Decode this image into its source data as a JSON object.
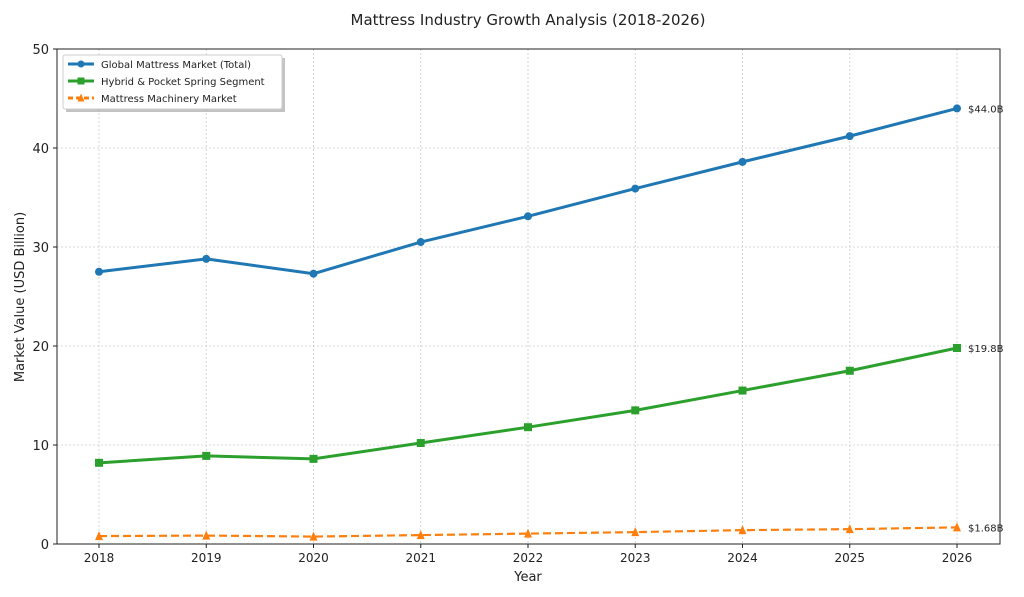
{
  "chart_data": {
    "type": "line",
    "title": "Mattress Industry Growth Analysis (2018-2026)",
    "xlabel": "Year",
    "ylabel": "Market Value (USD Billion)",
    "x": [
      2018,
      2019,
      2020,
      2021,
      2022,
      2023,
      2024,
      2025,
      2026
    ],
    "ylim": [
      0,
      50
    ],
    "yticks": [
      0,
      10,
      20,
      30,
      40,
      50
    ],
    "grid": true,
    "legend_position": "top-left",
    "series": [
      {
        "name": "Global Mattress Market (Total)",
        "color": "#1f77b4",
        "marker": "circle",
        "linestyle": "solid",
        "values": [
          27.5,
          28.8,
          27.3,
          30.5,
          33.1,
          35.9,
          38.6,
          41.2,
          44.0
        ],
        "end_label": "$44.0B"
      },
      {
        "name": "Hybrid & Pocket Spring Segment",
        "color": "#2ca02c",
        "marker": "square",
        "linestyle": "solid",
        "values": [
          8.2,
          8.9,
          8.6,
          10.2,
          11.8,
          13.5,
          15.5,
          17.5,
          19.8
        ],
        "end_label": "$19.8B"
      },
      {
        "name": "Mattress Machinery Market",
        "color": "#ff7f0e",
        "marker": "triangle",
        "linestyle": "dashed",
        "values": [
          0.8,
          0.85,
          0.75,
          0.9,
          1.05,
          1.2,
          1.4,
          1.5,
          1.68
        ],
        "end_label": "$1.68B"
      }
    ]
  }
}
